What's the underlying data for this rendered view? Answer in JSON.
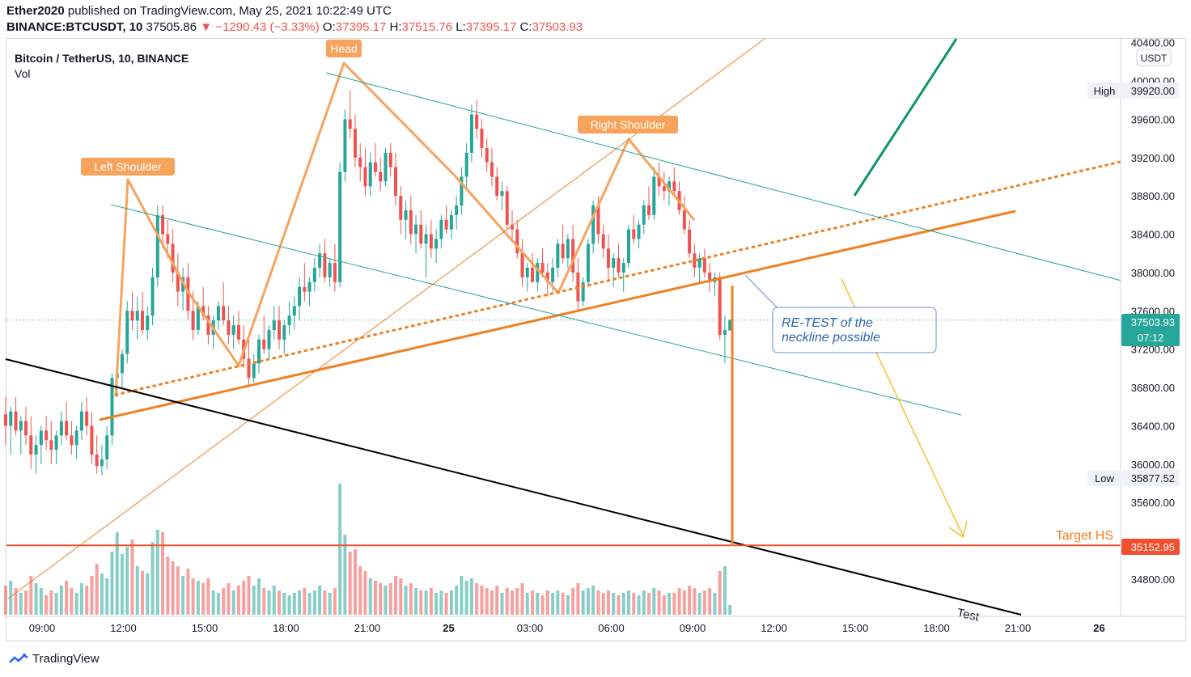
{
  "header": {
    "author": "Ether2020",
    "published_text": "published on TradingView.com, May 25, 2021 10:22:49 UTC",
    "symbol": "BINANCE:BTCUSDT, 10",
    "last": "37505.86",
    "change_arrow": "▼",
    "change": "−1290.43 (−3.33%)",
    "o_label": "O:",
    "o": "37395.17",
    "h_label": "H:",
    "h": "37515.76",
    "l_label": "L:",
    "l": "37395.17",
    "c_label": "C:",
    "c": "37503.93"
  },
  "legend": {
    "title": "Bitcoin / TetherUS, 10, BINANCE",
    "vol": "Vol"
  },
  "footer": {
    "brand": "TradingView"
  },
  "colors": {
    "up": "#26a69a",
    "down": "#ef5350",
    "pattern": "#f7a35c",
    "neckline": "#f08020",
    "channel": "#26a69a",
    "target": "#f05030",
    "projection": "#f5c030",
    "note": "#2962ff"
  },
  "chart_data": {
    "type": "candlestick",
    "currency_label": "USDT",
    "x_ticks": [
      "09:00",
      "12:00",
      "15:00",
      "18:00",
      "21:00",
      "25",
      "03:00",
      "06:00",
      "09:00",
      "12:00",
      "15:00",
      "18:00",
      "21:00",
      "26"
    ],
    "y_ticks": [
      40400,
      40000,
      39600,
      39200,
      38800,
      38400,
      38000,
      37600,
      37200,
      36800,
      36400,
      36000,
      35600,
      34800
    ],
    "y_tick_labels": [
      "40400.00",
      "40000.00",
      "39600.00",
      "39200.00",
      "38800.00",
      "38400.00",
      "38000.00",
      "37600.00",
      "37200.00",
      "36800.00",
      "36400.00",
      "36000.00",
      "35600.00",
      "34800.00"
    ],
    "ylim": [
      34300,
      40600
    ],
    "price_labels": [
      {
        "label": "High",
        "value": "39920.00"
      },
      {
        "label": "Low",
        "value": "35877.52"
      },
      {
        "label": "",
        "value": "37503.93",
        "sub": "07:12"
      },
      {
        "label": "",
        "value": "35152.95"
      }
    ],
    "annotations": [
      {
        "text": "Head"
      },
      {
        "text": "Left Shoulder"
      },
      {
        "text": "Right Shoulder"
      },
      {
        "text": "RE-TEST of the neckline possible"
      },
      {
        "text": "Target HS"
      },
      {
        "text": "Test"
      }
    ],
    "target_price": 35152.95,
    "close_price": 37503.93,
    "candles": [
      [
        36520,
        36700,
        36200,
        36400,
        1.2
      ],
      [
        36400,
        36600,
        36100,
        36550,
        1.4
      ],
      [
        36550,
        36700,
        36300,
        36350,
        1.1
      ],
      [
        36350,
        36500,
        36100,
        36450,
        0.9
      ],
      [
        36450,
        36600,
        36200,
        36300,
        1.0
      ],
      [
        36300,
        36500,
        35950,
        36100,
        1.6
      ],
      [
        36100,
        36300,
        35900,
        36200,
        1.3
      ],
      [
        36200,
        36400,
        36000,
        36350,
        1.1
      ],
      [
        36350,
        36500,
        36150,
        36250,
        0.8
      ],
      [
        36250,
        36450,
        36000,
        36150,
        1.0
      ],
      [
        36150,
        36350,
        36000,
        36300,
        0.9
      ],
      [
        36300,
        36550,
        36200,
        36450,
        1.2
      ],
      [
        36450,
        36650,
        36250,
        36300,
        1.4
      ],
      [
        36300,
        36450,
        36100,
        36200,
        1.1
      ],
      [
        36200,
        36400,
        36050,
        36350,
        0.9
      ],
      [
        36350,
        36650,
        36250,
        36550,
        1.3
      ],
      [
        36550,
        36700,
        36300,
        36400,
        1.2
      ],
      [
        36400,
        36550,
        36000,
        36100,
        1.6
      ],
      [
        36100,
        36300,
        35900,
        35980,
        2.1
      ],
      [
        35980,
        36200,
        35880,
        36050,
        1.7
      ],
      [
        36050,
        36400,
        35950,
        36300,
        1.5
      ],
      [
        36300,
        36950,
        36200,
        36900,
        2.6
      ],
      [
        36900,
        37100,
        36700,
        36950,
        3.4
      ],
      [
        36950,
        37200,
        36800,
        37150,
        2.5
      ],
      [
        37150,
        37700,
        37050,
        37600,
        2.8
      ],
      [
        37600,
        37800,
        37400,
        37500,
        3.1
      ],
      [
        37500,
        37750,
        37300,
        37600,
        2.0
      ],
      [
        37600,
        37800,
        37350,
        37400,
        1.8
      ],
      [
        37400,
        37650,
        37300,
        37550,
        1.7
      ],
      [
        37550,
        38050,
        37450,
        37950,
        3.0
      ],
      [
        37950,
        38700,
        37850,
        38600,
        3.5
      ],
      [
        38600,
        38700,
        38250,
        38400,
        3.4
      ],
      [
        38400,
        38550,
        38150,
        38300,
        2.4
      ],
      [
        38300,
        38450,
        37900,
        38000,
        2.2
      ],
      [
        38000,
        38200,
        37650,
        37800,
        2.0
      ],
      [
        37800,
        38050,
        37600,
        37950,
        1.6
      ],
      [
        37950,
        38100,
        37500,
        37600,
        1.9
      ],
      [
        37600,
        37800,
        37300,
        37400,
        1.5
      ],
      [
        37400,
        37700,
        37350,
        37650,
        1.4
      ],
      [
        37650,
        37850,
        37500,
        37550,
        1.3
      ],
      [
        37550,
        37650,
        37250,
        37350,
        1.5
      ],
      [
        37350,
        37550,
        37200,
        37500,
        1.0
      ],
      [
        37500,
        37700,
        37400,
        37650,
        0.9
      ],
      [
        37650,
        37900,
        37450,
        37500,
        1.1
      ],
      [
        37500,
        37650,
        37250,
        37350,
        1.3
      ],
      [
        37350,
        37550,
        37200,
        37450,
        1.0
      ],
      [
        37450,
        37600,
        37250,
        37300,
        1.2
      ],
      [
        37300,
        37450,
        37000,
        37100,
        1.4
      ],
      [
        37100,
        37300,
        36800,
        36900,
        1.6
      ],
      [
        36900,
        37150,
        36850,
        37050,
        1.2
      ],
      [
        37050,
        37350,
        36950,
        37300,
        1.5
      ],
      [
        37300,
        37550,
        37150,
        37200,
        1.1
      ],
      [
        37200,
        37450,
        37100,
        37400,
        1.0
      ],
      [
        37400,
        37650,
        37300,
        37500,
        1.2
      ],
      [
        37500,
        37650,
        37200,
        37300,
        1.0
      ],
      [
        37300,
        37500,
        37150,
        37450,
        0.9
      ],
      [
        37450,
        37700,
        37350,
        37550,
        0.8
      ],
      [
        37550,
        37750,
        37400,
        37650,
        0.9
      ],
      [
        37650,
        37950,
        37500,
        37850,
        1.0
      ],
      [
        37850,
        38100,
        37700,
        37800,
        1.1
      ],
      [
        37800,
        37950,
        37650,
        37900,
        0.9
      ],
      [
        37900,
        38150,
        37800,
        38050,
        1.0
      ],
      [
        38050,
        38300,
        37950,
        38200,
        1.2
      ],
      [
        38200,
        38350,
        37900,
        37950,
        1.0
      ],
      [
        37950,
        38150,
        37850,
        38100,
        0.9
      ],
      [
        38100,
        38300,
        37800,
        37900,
        1.1
      ],
      [
        37900,
        39150,
        37850,
        39050,
        5.4
      ],
      [
        39050,
        39700,
        38950,
        39600,
        3.3
      ],
      [
        39600,
        39900,
        39400,
        39500,
        2.6
      ],
      [
        39500,
        39650,
        39100,
        39200,
        2.7
      ],
      [
        39200,
        39350,
        38950,
        39100,
        2.0
      ],
      [
        39100,
        39300,
        38800,
        38900,
        1.8
      ],
      [
        38900,
        39250,
        38800,
        39150,
        1.5
      ],
      [
        39150,
        39350,
        39000,
        39050,
        1.4
      ],
      [
        39050,
        39200,
        38850,
        38950,
        1.3
      ],
      [
        38950,
        39300,
        38900,
        39250,
        1.2
      ],
      [
        39250,
        39350,
        39000,
        39100,
        1.3
      ],
      [
        39100,
        39250,
        38700,
        38800,
        1.6
      ],
      [
        38800,
        38900,
        38400,
        38550,
        1.5
      ],
      [
        38550,
        38750,
        38350,
        38650,
        1.2
      ],
      [
        38650,
        38800,
        38300,
        38400,
        1.3
      ],
      [
        38400,
        38600,
        38200,
        38500,
        1.1
      ],
      [
        38500,
        38650,
        38250,
        38300,
        1.0
      ],
      [
        38300,
        38500,
        37950,
        38400,
        1.0
      ],
      [
        38400,
        38550,
        38150,
        38250,
        1.1
      ],
      [
        38250,
        38450,
        38100,
        38350,
        0.9
      ],
      [
        38350,
        38600,
        38250,
        38550,
        1.0
      ],
      [
        38550,
        38700,
        38400,
        38450,
        0.9
      ],
      [
        38450,
        38650,
        38350,
        38600,
        1.0
      ],
      [
        38600,
        38800,
        38450,
        38700,
        1.2
      ],
      [
        38700,
        39100,
        38600,
        39000,
        1.6
      ],
      [
        39000,
        39350,
        38850,
        39250,
        1.4
      ],
      [
        39250,
        39750,
        39150,
        39650,
        1.5
      ],
      [
        39650,
        39800,
        39400,
        39500,
        1.3
      ],
      [
        39500,
        39600,
        39200,
        39300,
        1.2
      ],
      [
        39300,
        39400,
        39050,
        39150,
        1.1
      ],
      [
        39150,
        39300,
        38900,
        39000,
        1.0
      ],
      [
        39000,
        39100,
        38750,
        38800,
        1.2
      ],
      [
        38800,
        38950,
        38650,
        38850,
        0.9
      ],
      [
        38850,
        38900,
        38450,
        38500,
        1.1
      ],
      [
        38500,
        38650,
        38350,
        38450,
        1.0
      ],
      [
        38450,
        38550,
        38150,
        38200,
        1.1
      ],
      [
        38200,
        38350,
        37850,
        37950,
        1.3
      ],
      [
        37950,
        38100,
        37800,
        38050,
        0.9
      ],
      [
        38050,
        38200,
        37900,
        37900,
        1.0
      ],
      [
        37900,
        38150,
        37800,
        38100,
        0.9
      ],
      [
        38100,
        38250,
        37950,
        38000,
        0.8
      ],
      [
        38000,
        38100,
        37750,
        37900,
        1.0
      ],
      [
        37900,
        38150,
        37800,
        38050,
        0.9
      ],
      [
        38050,
        38350,
        37950,
        38300,
        1.0
      ],
      [
        38300,
        38500,
        38100,
        38150,
        0.9
      ],
      [
        38150,
        38400,
        38050,
        38350,
        0.8
      ],
      [
        38350,
        38500,
        37900,
        38000,
        1.1
      ],
      [
        38000,
        38150,
        37600,
        37700,
        1.3
      ],
      [
        37700,
        37950,
        37650,
        37900,
        1.0
      ],
      [
        37900,
        38350,
        37850,
        38300,
        1.1
      ],
      [
        38300,
        38750,
        38200,
        38700,
        1.2
      ],
      [
        38700,
        38800,
        38300,
        38400,
        1.0
      ],
      [
        38400,
        38500,
        38150,
        38250,
        0.9
      ],
      [
        38250,
        38400,
        37900,
        38050,
        1.0
      ],
      [
        38050,
        38200,
        37850,
        38150,
        0.9
      ],
      [
        38150,
        38300,
        37950,
        38000,
        0.8
      ],
      [
        38000,
        38150,
        37800,
        38100,
        0.9
      ],
      [
        38100,
        38500,
        38050,
        38450,
        1.0
      ],
      [
        38450,
        38600,
        38300,
        38350,
        0.9
      ],
      [
        38350,
        38550,
        38250,
        38500,
        0.8
      ],
      [
        38500,
        38750,
        38400,
        38700,
        1.0
      ],
      [
        38700,
        38900,
        38550,
        38600,
        0.9
      ],
      [
        38600,
        39100,
        38550,
        39000,
        1.1
      ],
      [
        39000,
        39150,
        38800,
        38900,
        1.0
      ],
      [
        38900,
        39050,
        38750,
        38850,
        0.8
      ],
      [
        38850,
        39000,
        38700,
        38950,
        0.9
      ],
      [
        38950,
        39100,
        38800,
        38850,
        0.9
      ],
      [
        38850,
        38950,
        38600,
        38650,
        1.1
      ],
      [
        38650,
        38800,
        38400,
        38450,
        1.0
      ],
      [
        38450,
        38550,
        38150,
        38200,
        1.2
      ],
      [
        38200,
        38300,
        37950,
        38050,
        1.1
      ],
      [
        38050,
        38200,
        37900,
        38150,
        0.9
      ],
      [
        38150,
        38250,
        37950,
        38000,
        1.0
      ],
      [
        38000,
        38100,
        37800,
        37900,
        1.1
      ],
      [
        37900,
        38000,
        37750,
        37950,
        0.9
      ],
      [
        37950,
        38000,
        37300,
        37350,
        1.8
      ],
      [
        37350,
        37550,
        37050,
        37400,
        2.0
      ],
      [
        37395,
        37515,
        37395,
        37503,
        0.4
      ]
    ]
  }
}
